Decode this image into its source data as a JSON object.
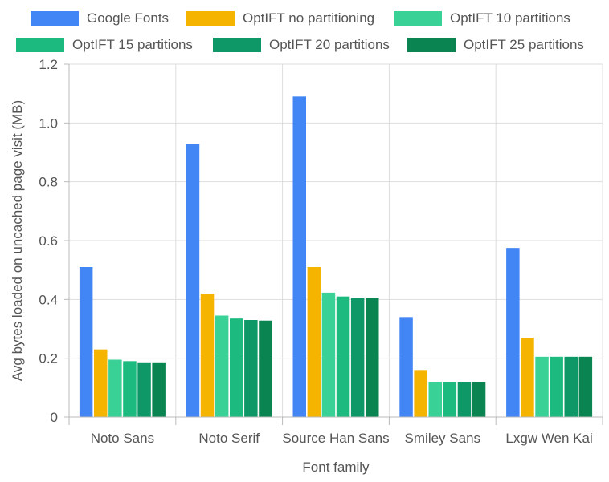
{
  "chart_data": {
    "type": "bar",
    "title": "",
    "xlabel": "Font family",
    "ylabel": "Avg bytes loaded on uncached page visit (MB)",
    "ylim": [
      0,
      1.2
    ],
    "yticks": [
      "0",
      "0.2",
      "0.4",
      "0.6",
      "0.8",
      "1.0",
      "1.2"
    ],
    "categories": [
      "Noto Sans",
      "Noto Serif",
      "Source Han Sans",
      "Smiley Sans",
      "Lxgw Wen Kai"
    ],
    "series": [
      {
        "name": "Google Fonts",
        "color": "#4285f4",
        "values": [
          0.51,
          0.93,
          1.09,
          0.34,
          0.575
        ]
      },
      {
        "name": "OptIFT no partitioning",
        "color": "#f4b400",
        "values": [
          0.23,
          0.42,
          0.51,
          0.16,
          0.27
        ]
      },
      {
        "name": "OptIFT 10 partitions",
        "color": "#3ad197",
        "values": [
          0.195,
          0.345,
          0.423,
          0.12,
          0.205
        ]
      },
      {
        "name": "OptIFT 15 partitions",
        "color": "#1cba7e",
        "values": [
          0.19,
          0.335,
          0.41,
          0.12,
          0.205
        ]
      },
      {
        "name": "OptIFT 20 partitions",
        "color": "#0e9767",
        "values": [
          0.186,
          0.33,
          0.405,
          0.12,
          0.205
        ]
      },
      {
        "name": "OptIFT 25 partitions",
        "color": "#0a8551",
        "values": [
          0.186,
          0.328,
          0.405,
          0.12,
          0.205
        ]
      }
    ],
    "grid": true,
    "legend_position": "top"
  }
}
